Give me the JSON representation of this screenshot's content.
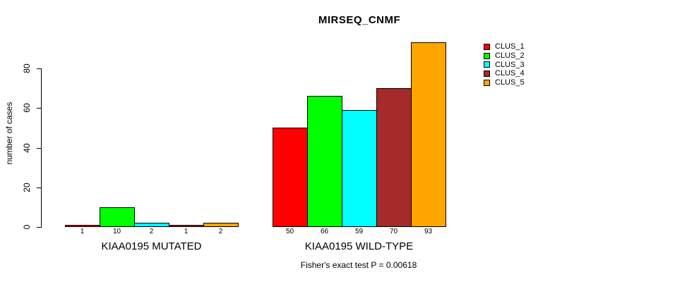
{
  "title": "MIRSEQ_CNMF",
  "ylabel": "number of cases",
  "footer": "Fisher's exact test P = 0.00618",
  "chart_data": {
    "type": "bar",
    "title": "MIRSEQ_CNMF",
    "xlabel": "",
    "ylabel": "number of cases",
    "ylim": [
      0,
      93
    ],
    "yticks": [
      0,
      20,
      40,
      60,
      80
    ],
    "grid": false,
    "legend_position": "right",
    "bar_value_labels_shown": true,
    "groups": [
      {
        "label": "KIAA0195 MUTATED",
        "values": [
          1,
          10,
          2,
          1,
          2
        ]
      },
      {
        "label": "KIAA0195 WILD-TYPE",
        "values": [
          50,
          66,
          59,
          70,
          93
        ]
      }
    ],
    "series": [
      {
        "name": "CLUS_1",
        "color": "#FF0000"
      },
      {
        "name": "CLUS_2",
        "color": "#00FF00"
      },
      {
        "name": "CLUS_3",
        "color": "#00FFFF"
      },
      {
        "name": "CLUS_4",
        "color": "#A52A2A"
      },
      {
        "name": "CLUS_5",
        "color": "#FFA500"
      }
    ],
    "annotation": "Fisher's exact test P = 0.00618"
  }
}
